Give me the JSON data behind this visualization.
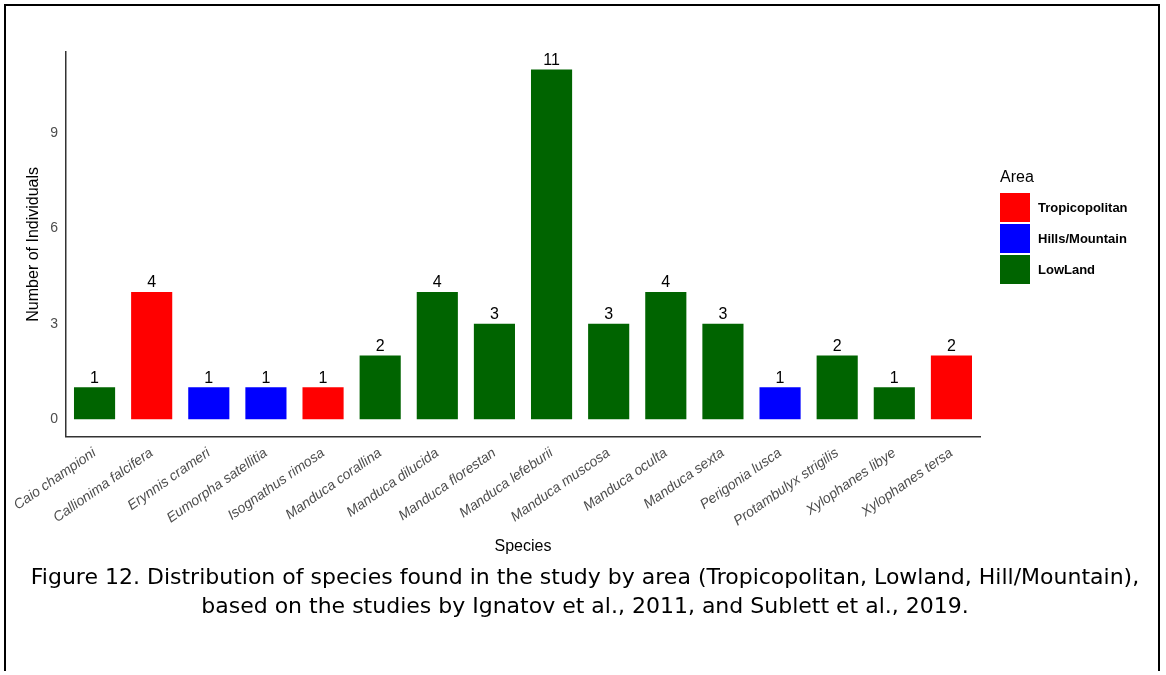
{
  "chart_data": {
    "type": "bar",
    "xlabel": "Species",
    "ylabel": "Number of Individuals",
    "legend_title": "Area",
    "legend": "right",
    "grid": false,
    "data_labels": true,
    "categories": [
      "Caio championi",
      "Callionima falcifera",
      "Erynnis crameri",
      "Eumorpha satellitia",
      "Isognathus rimosa",
      "Manduca corallina",
      "Manduca dilucida",
      "Manduca florestan",
      "Manduca lefeburii",
      "Manduca muscosa",
      "Manduca oculta",
      "Manduca sexta",
      "Perigonia lusca",
      "Protambulyx strigilis",
      "Xylophanes libye",
      "Xylophanes tersa"
    ],
    "series": [
      {
        "name": "Tropicopolitan",
        "color": "#ff0000",
        "values": [
          null,
          4,
          null,
          null,
          1,
          null,
          null,
          null,
          null,
          null,
          null,
          null,
          null,
          null,
          null,
          2
        ]
      },
      {
        "name": "Hills/Mountain",
        "color": "#0000ff",
        "values": [
          null,
          null,
          1,
          1,
          null,
          null,
          null,
          null,
          null,
          null,
          null,
          null,
          1,
          null,
          null,
          null
        ]
      },
      {
        "name": "LowLand",
        "color": "#006400",
        "values": [
          1,
          null,
          null,
          null,
          null,
          2,
          4,
          3,
          11,
          3,
          4,
          3,
          null,
          2,
          1,
          null
        ]
      }
    ],
    "ylim": [
      -0.55,
      11.55
    ],
    "yticks": [
      0,
      3,
      6,
      9
    ],
    "annotations": [
      "Figure 12. Distribution of species found in the study by area (Tropicopolitan, Lowland, Hill/Mountain), based on the studies by Ignatov et al., 2011, and Sublett et al., 2019."
    ]
  }
}
